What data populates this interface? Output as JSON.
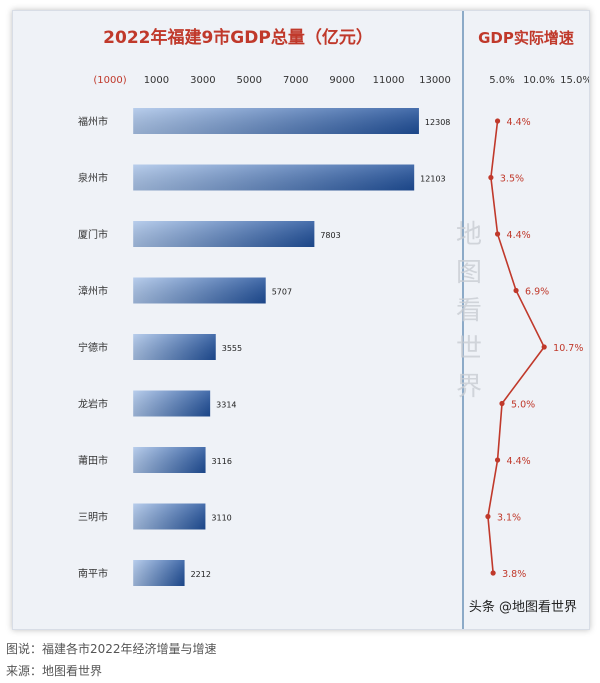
{
  "chart_data": [
    {
      "type": "bar",
      "orientation": "horizontal",
      "title": "2022年福建9市GDP总量（亿元）",
      "categories": [
        "福州市",
        "泉州市",
        "厦门市",
        "漳州市",
        "宁德市",
        "龙岩市",
        "莆田市",
        "三明市",
        "南平市"
      ],
      "values": [
        12308,
        12103,
        7803,
        5707,
        3555,
        3314,
        3116,
        3110,
        2212
      ],
      "xlim": [
        -1000,
        13000
      ],
      "ticks": [
        "(1000)",
        "1000",
        "3000",
        "5000",
        "7000",
        "9000",
        "11000",
        "13000"
      ],
      "colors": {
        "bar_light": "#a9c3e8",
        "bar_dark": "#1f4f9a",
        "title": "#c0392b"
      }
    },
    {
      "type": "line",
      "orientation": "vertical",
      "title": "GDP实际增速",
      "categories": [
        "福州市",
        "泉州市",
        "厦门市",
        "漳州市",
        "宁德市",
        "龙岩市",
        "莆田市",
        "三明市",
        "南平市"
      ],
      "values": [
        4.4,
        3.5,
        4.4,
        6.9,
        10.7,
        5.0,
        4.4,
        3.1,
        3.8
      ],
      "value_labels": [
        "4.4%",
        "3.5%",
        "4.4%",
        "6.9%",
        "10.7%",
        "5.0%",
        "4.4%",
        "3.1%",
        "3.8%"
      ],
      "xlim": [
        0,
        15
      ],
      "ticks": [
        "5.0%",
        "10.0%",
        "15.0%"
      ],
      "colors": {
        "line": "#c0392b"
      }
    }
  ],
  "watermark": "地图看世界",
  "brand": "头条 @地图看世界",
  "captions": {
    "line1": "图说：福建各市2022年经济增量与增速",
    "line2": "来源：地图看世界"
  }
}
